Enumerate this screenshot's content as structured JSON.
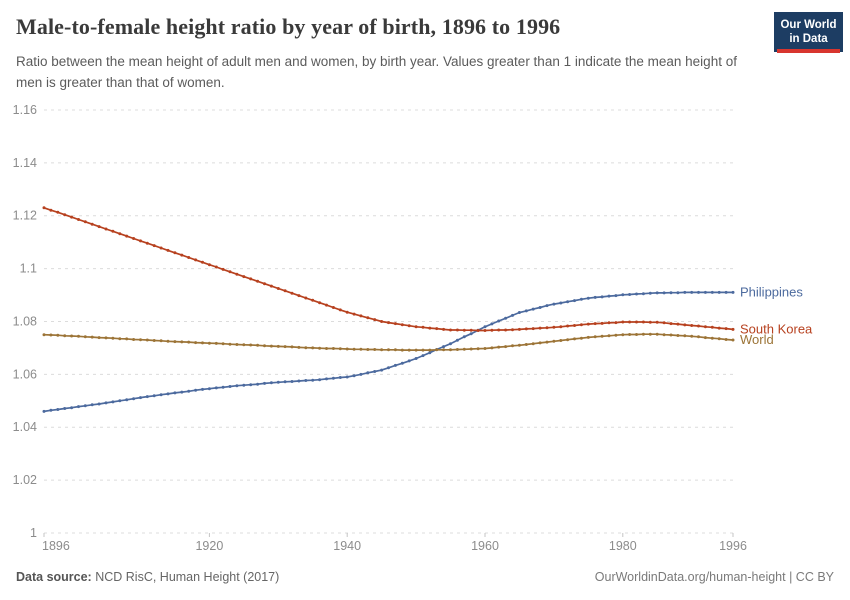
{
  "header": {
    "title": "Male-to-female height ratio by year of birth, 1896 to 1996",
    "subtitle": "Ratio between the mean height of adult men and women, by birth year. Values greater than 1 indicate the mean height of men is greater than that of women.",
    "logo": {
      "line1": "Our World",
      "line2": "in Data",
      "bg_color": "#1d3d63",
      "accent_color": "#d8352e"
    }
  },
  "footer": {
    "source_label": "Data source:",
    "source_value": " NCD RisC, Human Height (2017)",
    "credit": "OurWorldinData.org/human-height | CC BY"
  },
  "chart_data": {
    "type": "line",
    "title": "Male-to-female height ratio by year of birth, 1896 to 1996",
    "xlabel": "",
    "ylabel": "",
    "xlim": [
      1896,
      1996
    ],
    "ylim": [
      1.0,
      1.16
    ],
    "grid": "horizontal-dashed",
    "grid_color": "#dcdcdc",
    "tick_color": "#8c8c8c",
    "axis_tick_mark_color": "#c4c4c4",
    "markers": "dot-per-year",
    "legend_position": "right-end-labels",
    "xticks": [
      1896,
      1920,
      1940,
      1960,
      1980,
      1996
    ],
    "yticks": [
      1,
      1.02,
      1.04,
      1.06,
      1.08,
      1.1,
      1.12,
      1.14,
      1.16
    ],
    "ytick_labels": [
      "1",
      "1.02",
      "1.04",
      "1.06",
      "1.08",
      "1.1",
      "1.12",
      "1.14",
      "1.16"
    ],
    "years": {
      "start": 1896,
      "end": 1996,
      "step": 1
    },
    "series": [
      {
        "name": "Philippines",
        "color": "#4c6a9e",
        "values": [
          1.046,
          1.0464,
          1.0467,
          1.0471,
          1.0474,
          1.0478,
          1.0481,
          1.0485,
          1.0488,
          1.0492,
          1.0496,
          1.05,
          1.0504,
          1.0508,
          1.0512,
          1.0516,
          1.0519,
          1.0523,
          1.0526,
          1.053,
          1.0533,
          1.0536,
          1.054,
          1.0543,
          1.0546,
          1.0549,
          1.0551,
          1.0554,
          1.0557,
          1.0559,
          1.0561,
          1.0563,
          1.0566,
          1.0568,
          1.057,
          1.0572,
          1.0573,
          1.0575,
          1.0577,
          1.0578,
          1.058,
          1.0583,
          1.0585,
          1.0588,
          1.059,
          1.0595,
          1.06,
          1.0606,
          1.0611,
          1.0616,
          1.0625,
          1.0634,
          1.0642,
          1.0651,
          1.066,
          1.0671,
          1.0682,
          1.0694,
          1.0705,
          1.0716,
          1.0729,
          1.0742,
          1.0754,
          1.0767,
          1.078,
          1.0791,
          1.0802,
          1.0812,
          1.0823,
          1.0834,
          1.084,
          1.0847,
          1.0853,
          1.086,
          1.0866,
          1.087,
          1.0875,
          1.0879,
          1.0884,
          1.0888,
          1.0891,
          1.0893,
          1.0896,
          1.0898,
          1.0901,
          1.0902,
          1.0904,
          1.0905,
          1.0907,
          1.0908,
          1.0908,
          1.0909,
          1.0909,
          1.091,
          1.091,
          1.091,
          1.091,
          1.091,
          1.091,
          1.091,
          1.091
        ]
      },
      {
        "name": "South Korea",
        "color": "#b7411f",
        "values": [
          1.123,
          1.1221,
          1.1213,
          1.1204,
          1.1195,
          1.1186,
          1.1177,
          1.1168,
          1.1159,
          1.115,
          1.1141,
          1.1132,
          1.1123,
          1.1114,
          1.1105,
          1.1096,
          1.1087,
          1.1078,
          1.1069,
          1.106,
          1.1051,
          1.1042,
          1.1033,
          1.1024,
          1.1015,
          1.1006,
          1.0997,
          1.0988,
          1.0979,
          1.097,
          1.0961,
          1.0952,
          1.0943,
          1.0934,
          1.0925,
          1.0916,
          1.0907,
          1.0898,
          1.0889,
          1.088,
          1.0871,
          1.0862,
          1.0853,
          1.0844,
          1.0835,
          1.0828,
          1.0821,
          1.0814,
          1.0807,
          1.08,
          1.0796,
          1.0792,
          1.0788,
          1.0784,
          1.078,
          1.0778,
          1.0775,
          1.0773,
          1.077,
          1.0768,
          1.0768,
          1.0767,
          1.0767,
          1.0766,
          1.0766,
          1.0767,
          1.0768,
          1.0768,
          1.0769,
          1.077,
          1.0772,
          1.0773,
          1.0775,
          1.0776,
          1.0778,
          1.078,
          1.0783,
          1.0785,
          1.0788,
          1.079,
          1.0792,
          1.0793,
          1.0795,
          1.0796,
          1.0798,
          1.0798,
          1.0798,
          1.0798,
          1.0797,
          1.0797,
          1.0795,
          1.0792,
          1.079,
          1.0787,
          1.0785,
          1.0783,
          1.078,
          1.0778,
          1.0775,
          1.0773,
          1.077
        ]
      },
      {
        "name": "World",
        "color": "#9c7437",
        "values": [
          1.075,
          1.0749,
          1.0748,
          1.0746,
          1.0745,
          1.0744,
          1.0742,
          1.0741,
          1.0739,
          1.0738,
          1.0737,
          1.0735,
          1.0734,
          1.0732,
          1.0731,
          1.073,
          1.0728,
          1.0727,
          1.0725,
          1.0724,
          1.0723,
          1.0722,
          1.072,
          1.0719,
          1.0718,
          1.0717,
          1.0716,
          1.0714,
          1.0713,
          1.0712,
          1.0711,
          1.071,
          1.0708,
          1.0707,
          1.0706,
          1.0705,
          1.0704,
          1.0702,
          1.0701,
          1.07,
          1.0699,
          1.0698,
          1.0698,
          1.0697,
          1.0696,
          1.0695,
          1.0695,
          1.0694,
          1.0694,
          1.0693,
          1.0693,
          1.0693,
          1.0692,
          1.0692,
          1.0692,
          1.0692,
          1.0692,
          1.0693,
          1.0693,
          1.0693,
          1.0694,
          1.0695,
          1.0696,
          1.0697,
          1.0698,
          1.07,
          1.0703,
          1.0705,
          1.0708,
          1.071,
          1.0713,
          1.0716,
          1.0719,
          1.0722,
          1.0725,
          1.0728,
          1.0731,
          1.0734,
          1.0737,
          1.074,
          1.0742,
          1.0744,
          1.0746,
          1.0748,
          1.075,
          1.0751,
          1.0751,
          1.0752,
          1.0752,
          1.0752,
          1.075,
          1.0749,
          1.0747,
          1.0746,
          1.0744,
          1.0742,
          1.0739,
          1.0737,
          1.0735,
          1.0732,
          1.073
        ]
      }
    ]
  }
}
